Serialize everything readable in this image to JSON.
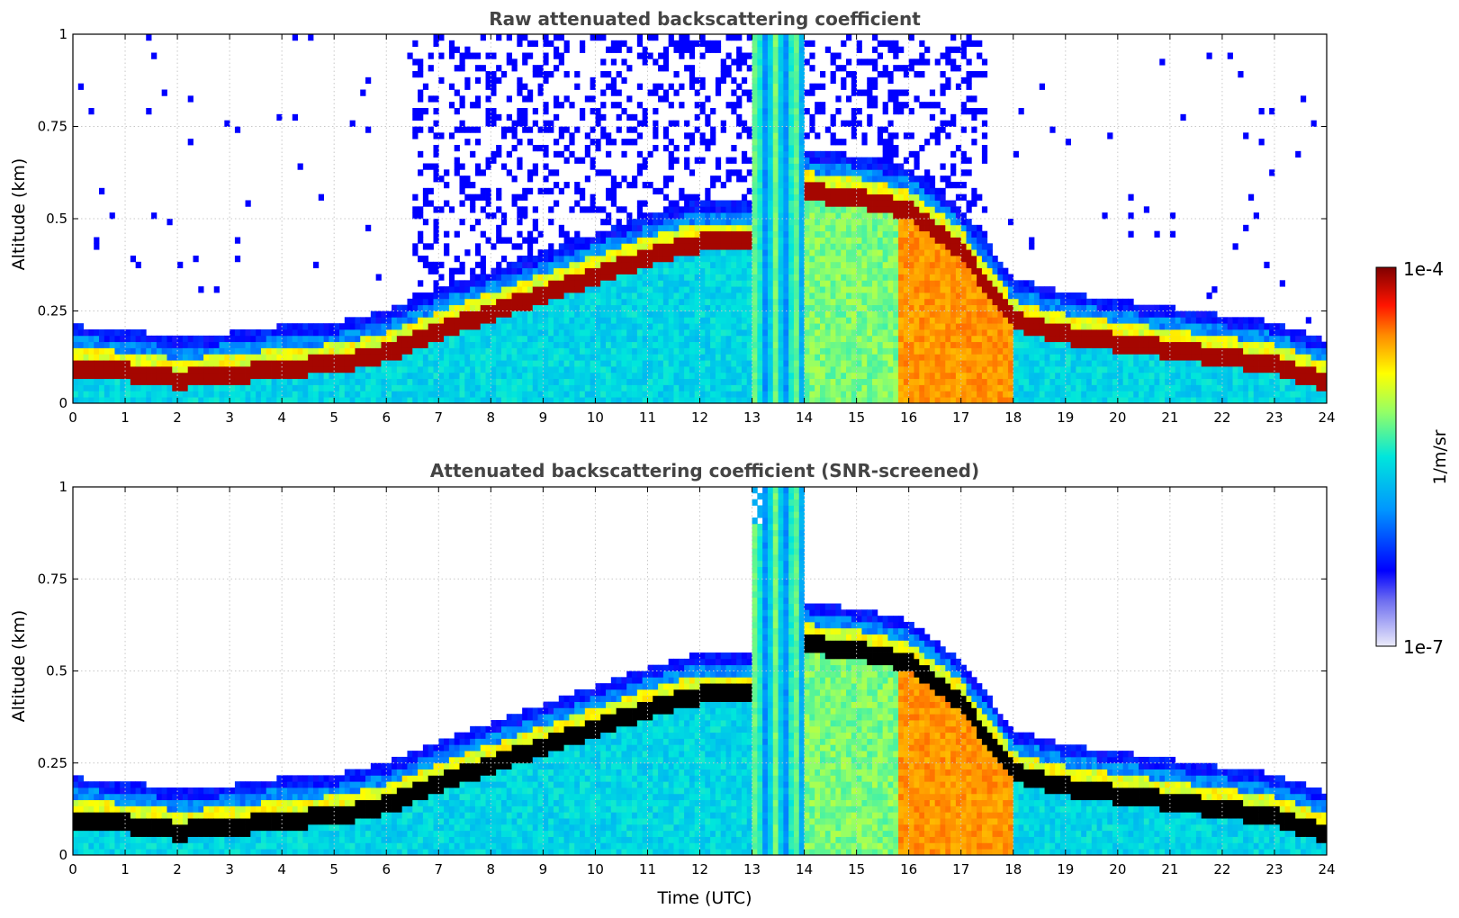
{
  "chart_data": [
    {
      "type": "heatmap",
      "title": "Raw attenuated backscattering coefficient",
      "xlabel": "",
      "ylabel": "Altitude (km)",
      "xlim": [
        0,
        24
      ],
      "ylim": [
        0,
        1
      ],
      "xticks": [
        0,
        1,
        2,
        3,
        4,
        5,
        6,
        7,
        8,
        9,
        10,
        11,
        12,
        13,
        14,
        15,
        16,
        17,
        18,
        19,
        20,
        21,
        22,
        23,
        24
      ],
      "yticks": [
        0,
        0.25,
        0.5,
        0.75,
        1
      ],
      "ytick_labels": [
        "0",
        "0.25",
        "0.5",
        "0.75",
        "1"
      ],
      "grid": true,
      "snr_screened": false,
      "boundary_layer_top_km": {
        "x": [
          0,
          1,
          2,
          3,
          4,
          5,
          6,
          7,
          8,
          9,
          10,
          11,
          12,
          13,
          14,
          15,
          16,
          17,
          18,
          19,
          20,
          21,
          22,
          23,
          24
        ],
        "y": [
          0.12,
          0.11,
          0.09,
          0.1,
          0.12,
          0.13,
          0.16,
          0.22,
          0.27,
          0.32,
          0.37,
          0.42,
          0.46,
          null,
          0.6,
          0.58,
          0.55,
          0.44,
          0.25,
          0.21,
          0.19,
          0.17,
          0.15,
          0.13,
          0.08
        ]
      }
    },
    {
      "type": "heatmap",
      "title": "Attenuated backscattering coefficient (SNR-screened)",
      "xlabel": "Time (UTC)",
      "ylabel": "Altitude (km)",
      "xlim": [
        0,
        24
      ],
      "ylim": [
        0,
        1
      ],
      "xticks": [
        0,
        1,
        2,
        3,
        4,
        5,
        6,
        7,
        8,
        9,
        10,
        11,
        12,
        13,
        14,
        15,
        16,
        17,
        18,
        19,
        20,
        21,
        22,
        23,
        24
      ],
      "yticks": [
        0,
        0.25,
        0.5,
        0.75,
        1
      ],
      "ytick_labels": [
        "0",
        "0.25",
        "0.5",
        "0.75",
        "1"
      ],
      "grid": true,
      "snr_screened": true,
      "boundary_layer_top_km": {
        "x": [
          0,
          1,
          2,
          3,
          4,
          5,
          6,
          7,
          8,
          9,
          10,
          11,
          12,
          13,
          14,
          15,
          16,
          17,
          18,
          19,
          20,
          21,
          22,
          23,
          24
        ],
        "y": [
          0.12,
          0.11,
          0.09,
          0.1,
          0.12,
          0.13,
          0.16,
          0.22,
          0.27,
          0.32,
          0.37,
          0.42,
          0.46,
          null,
          0.6,
          0.58,
          0.55,
          0.44,
          0.25,
          0.21,
          0.19,
          0.17,
          0.15,
          0.13,
          0.08
        ]
      }
    }
  ],
  "colorbar": {
    "label": "1/m/sr",
    "max_label": "1e-4",
    "min_label": "1e-7",
    "scale": "log",
    "range": [
      1e-07,
      0.0001
    ],
    "colormap": "jet",
    "colors": [
      "#ebebfa",
      "#0000ff",
      "#00c8ff",
      "#7dff7d",
      "#ffff00",
      "#ff7d00",
      "#ff0000",
      "#7f0000"
    ]
  }
}
